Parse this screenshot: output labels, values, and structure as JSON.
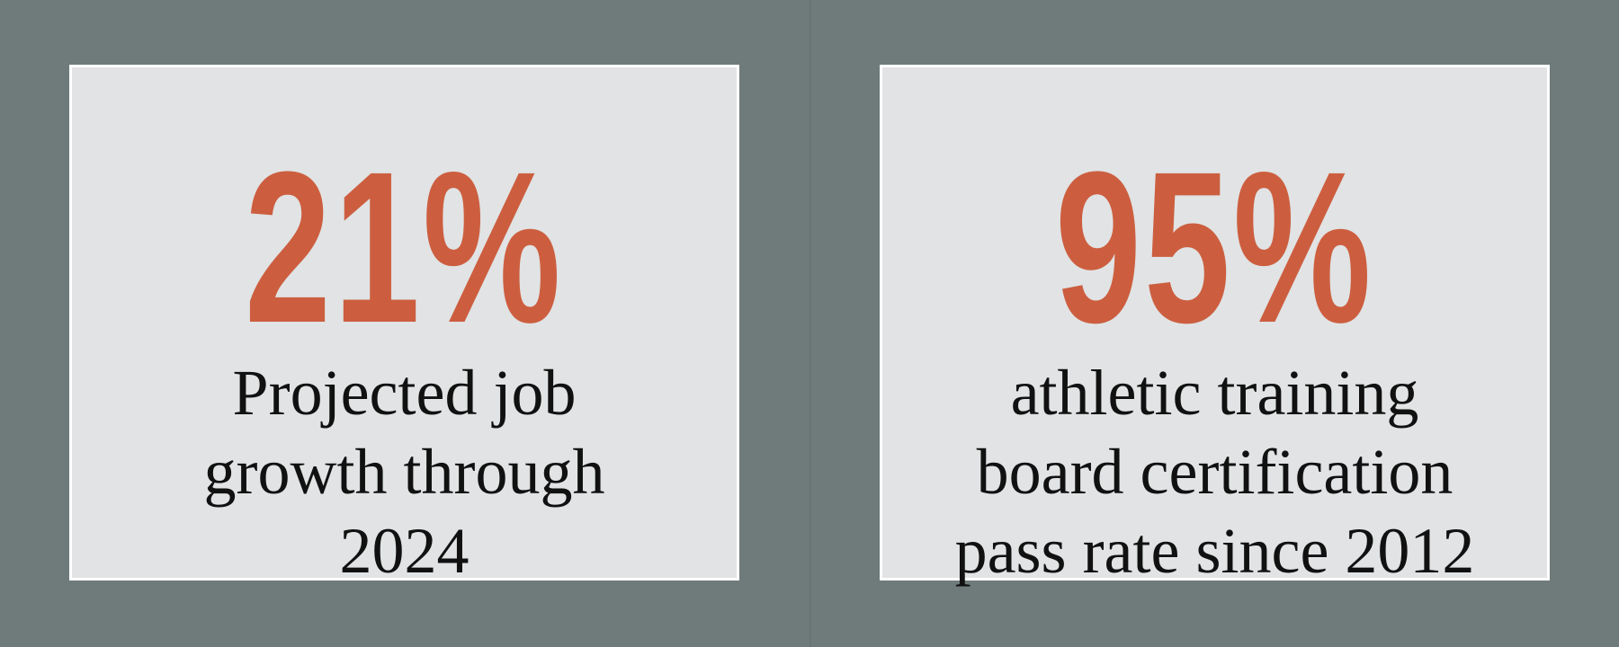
{
  "cards": [
    {
      "stat": "21%",
      "lines": [
        "Projected job",
        "growth through",
        "2024"
      ]
    },
    {
      "stat": "95%",
      "lines": [
        "athletic training",
        "board certification",
        "pass rate since 2012"
      ]
    }
  ]
}
